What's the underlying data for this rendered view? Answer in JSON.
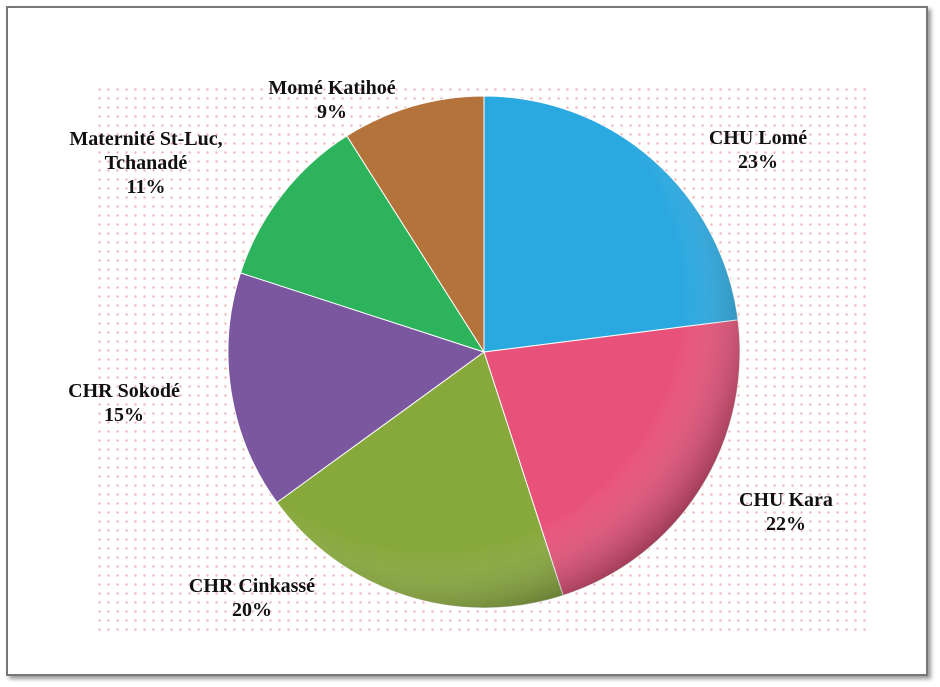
{
  "chart_data": {
    "type": "pie",
    "categories": [
      "CHU Lomé",
      "CHU Kara",
      "CHR Cinkassé",
      "CHR Sokodé",
      "Maternité St-Luc, Tchanadé",
      "Momé Katihoé"
    ],
    "values": [
      23,
      22,
      20,
      15,
      11,
      9
    ],
    "value_labels": [
      "23%",
      "22%",
      "20%",
      "15%",
      "11%",
      "9%"
    ],
    "colors": [
      "#2aa8e0",
      "#e8527a",
      "#87a83b",
      "#7a579f",
      "#2db35b",
      "#b5733c"
    ]
  }
}
